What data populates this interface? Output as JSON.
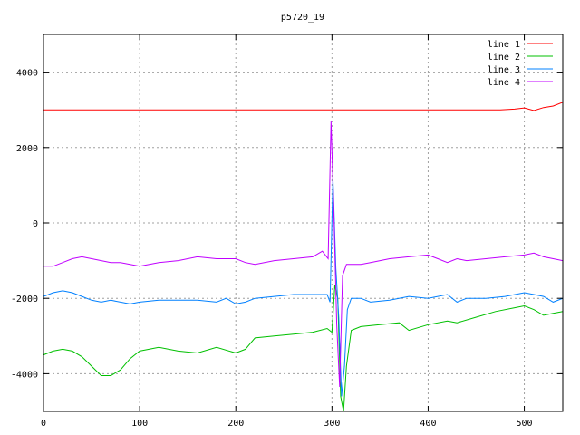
{
  "chart_data": {
    "type": "line",
    "title": "p5720_19",
    "xlabel": "",
    "ylabel": "",
    "xlim": [
      0,
      540
    ],
    "ylim": [
      -5000,
      5000
    ],
    "xticks": [
      0,
      100,
      200,
      300,
      400,
      500
    ],
    "yticks": [
      -4000,
      -2000,
      0,
      2000,
      4000
    ],
    "grid": true,
    "legend_position": "top-right",
    "series": [
      {
        "name": "line 1",
        "color": "#ff0000",
        "x": [
          0,
          100,
          200,
          300,
          400,
          475,
          490,
          500,
          510,
          520,
          530,
          540
        ],
        "y": [
          3000,
          3000,
          3000,
          3000,
          3000,
          3000,
          3020,
          3050,
          2980,
          3060,
          3100,
          3200
        ]
      },
      {
        "name": "line 2",
        "color": "#00c000",
        "x": [
          0,
          10,
          20,
          30,
          40,
          50,
          60,
          70,
          80,
          90,
          100,
          120,
          140,
          160,
          180,
          200,
          210,
          220,
          240,
          260,
          280,
          295,
          300,
          303,
          306,
          309,
          312,
          315,
          320,
          330,
          350,
          370,
          380,
          400,
          420,
          430,
          450,
          470,
          490,
          500,
          510,
          520,
          530,
          540
        ],
        "y": [
          -3500,
          -3400,
          -3350,
          -3400,
          -3550,
          -3800,
          -4050,
          -4050,
          -3900,
          -3600,
          -3400,
          -3300,
          -3400,
          -3450,
          -3300,
          -3450,
          -3350,
          -3050,
          -3000,
          -2950,
          -2900,
          -2800,
          -2900,
          -1650,
          -2000,
          -4600,
          -5000,
          -3800,
          -2850,
          -2750,
          -2700,
          -2650,
          -2850,
          -2700,
          -2600,
          -2650,
          -2500,
          -2350,
          -2250,
          -2200,
          -2300,
          -2450,
          -2400,
          -2350
        ]
      },
      {
        "name": "line 3",
        "color": "#0080ff",
        "x": [
          0,
          10,
          20,
          30,
          40,
          50,
          60,
          70,
          80,
          90,
          100,
          120,
          140,
          160,
          180,
          190,
          200,
          210,
          220,
          240,
          260,
          280,
          295,
          298,
          301,
          304,
          307,
          310,
          313,
          316,
          320,
          330,
          340,
          360,
          380,
          400,
          420,
          430,
          440,
          460,
          480,
          500,
          510,
          520,
          530,
          540
        ],
        "y": [
          -1950,
          -1850,
          -1800,
          -1850,
          -1950,
          -2050,
          -2100,
          -2050,
          -2100,
          -2150,
          -2100,
          -2050,
          -2050,
          -2050,
          -2100,
          -2000,
          -2150,
          -2100,
          -2000,
          -1950,
          -1900,
          -1900,
          -1900,
          -2100,
          1200,
          -1200,
          -2500,
          -4600,
          -3800,
          -2300,
          -2000,
          -2000,
          -2100,
          -2050,
          -1950,
          -2000,
          -1900,
          -2100,
          -2000,
          -2000,
          -1950,
          -1850,
          -1900,
          -1950,
          -2100,
          -2000
        ]
      },
      {
        "name": "line 4",
        "color": "#c000ff",
        "x": [
          0,
          10,
          20,
          30,
          40,
          50,
          60,
          70,
          80,
          90,
          100,
          110,
          120,
          140,
          160,
          180,
          200,
          210,
          220,
          240,
          260,
          280,
          290,
          296,
          299,
          302,
          305,
          308,
          311,
          315,
          320,
          330,
          340,
          360,
          380,
          400,
          410,
          420,
          430,
          440,
          460,
          480,
          500,
          510,
          520,
          530,
          540
        ],
        "y": [
          -1150,
          -1150,
          -1050,
          -950,
          -900,
          -950,
          -1000,
          -1050,
          -1050,
          -1100,
          -1150,
          -1100,
          -1050,
          -1000,
          -900,
          -950,
          -950,
          -1050,
          -1100,
          -1000,
          -950,
          -900,
          -750,
          -950,
          2700,
          200,
          -2700,
          -4350,
          -1400,
          -1100,
          -1100,
          -1100,
          -1050,
          -950,
          -900,
          -850,
          -950,
          -1050,
          -950,
          -1000,
          -950,
          -900,
          -850,
          -800,
          -900,
          -950,
          -1000
        ]
      }
    ]
  }
}
